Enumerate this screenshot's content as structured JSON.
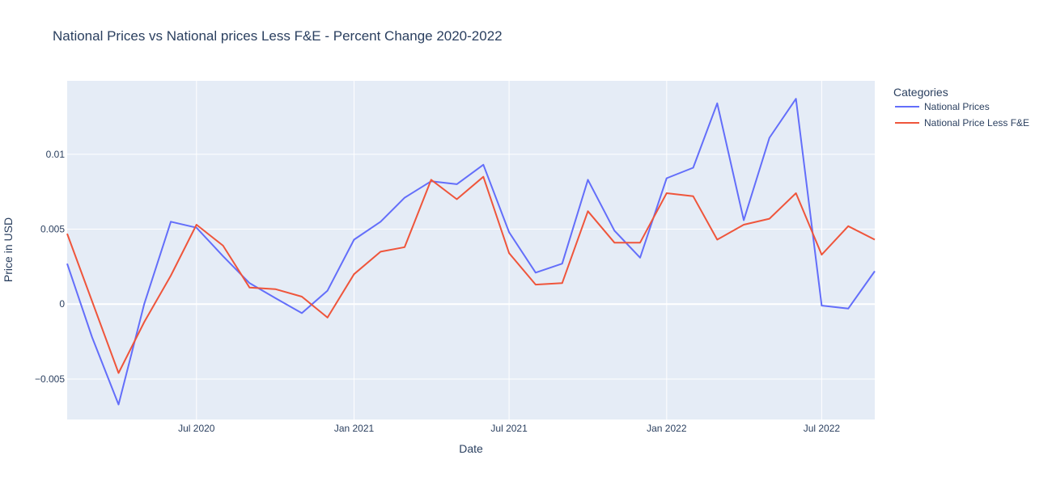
{
  "colors": {
    "plot_background": "#e5ecf6",
    "grid": "#ffffff",
    "text": "#2a3f5f",
    "series": [
      "#636efa",
      "#ef553b"
    ]
  },
  "chart_data": {
    "type": "line",
    "title": "National Prices vs National prices Less F&E - Percent Change 2020-2022",
    "xlabel": "Date",
    "ylabel": "Price in USD",
    "legend_title": "Categories",
    "legend_position": "right",
    "grid": true,
    "x_range": [
      "2020-02-01",
      "2022-09-01"
    ],
    "ylim": [
      -0.0077,
      0.0149
    ],
    "x_ticks": [
      {
        "date": "2020-07-01",
        "label": "Jul 2020"
      },
      {
        "date": "2021-01-01",
        "label": "Jan 2021"
      },
      {
        "date": "2021-07-01",
        "label": "Jul 2021"
      },
      {
        "date": "2022-01-01",
        "label": "Jan 2022"
      },
      {
        "date": "2022-07-01",
        "label": "Jul 2022"
      }
    ],
    "y_ticks": [
      {
        "value": -0.005,
        "label": "−0.005"
      },
      {
        "value": 0,
        "label": "0"
      },
      {
        "value": 0.005,
        "label": "0.005"
      },
      {
        "value": 0.01,
        "label": "0.01"
      }
    ],
    "x": [
      "2020-02-01",
      "2020-03-01",
      "2020-04-01",
      "2020-05-01",
      "2020-06-01",
      "2020-07-01",
      "2020-08-01",
      "2020-09-01",
      "2020-10-01",
      "2020-11-01",
      "2020-12-01",
      "2021-01-01",
      "2021-02-01",
      "2021-03-01",
      "2021-04-01",
      "2021-05-01",
      "2021-06-01",
      "2021-07-01",
      "2021-08-01",
      "2021-09-01",
      "2021-10-01",
      "2021-11-01",
      "2021-12-01",
      "2022-01-01",
      "2022-02-01",
      "2022-03-01",
      "2022-04-01",
      "2022-05-01",
      "2022-06-01",
      "2022-07-01",
      "2022-08-01",
      "2022-09-01"
    ],
    "series": [
      {
        "name": "National Prices",
        "values": [
          0.0027,
          -0.0022,
          -0.0067,
          0.0,
          0.0055,
          0.0051,
          0.0032,
          0.0014,
          0.0004,
          -0.0006,
          0.0009,
          0.0043,
          0.0055,
          0.0071,
          0.0082,
          0.008,
          0.0093,
          0.0048,
          0.0021,
          0.0027,
          0.0083,
          0.0049,
          0.0031,
          0.0084,
          0.0091,
          0.0134,
          0.0056,
          0.0111,
          0.0137,
          -0.0001,
          -0.0003,
          0.0022
        ]
      },
      {
        "name": "National Price Less F&E",
        "values": [
          0.0047,
          0.0002,
          -0.0046,
          -0.0012,
          0.0019,
          0.0053,
          0.0039,
          0.0011,
          0.001,
          0.0005,
          -0.0009,
          0.002,
          0.0035,
          0.0038,
          0.0083,
          0.007,
          0.0085,
          0.0034,
          0.0013,
          0.0014,
          0.0062,
          0.0041,
          0.0041,
          0.0074,
          0.0072,
          0.0043,
          0.0053,
          0.0057,
          0.0074,
          0.0033,
          0.0052,
          0.0043
        ]
      }
    ]
  }
}
